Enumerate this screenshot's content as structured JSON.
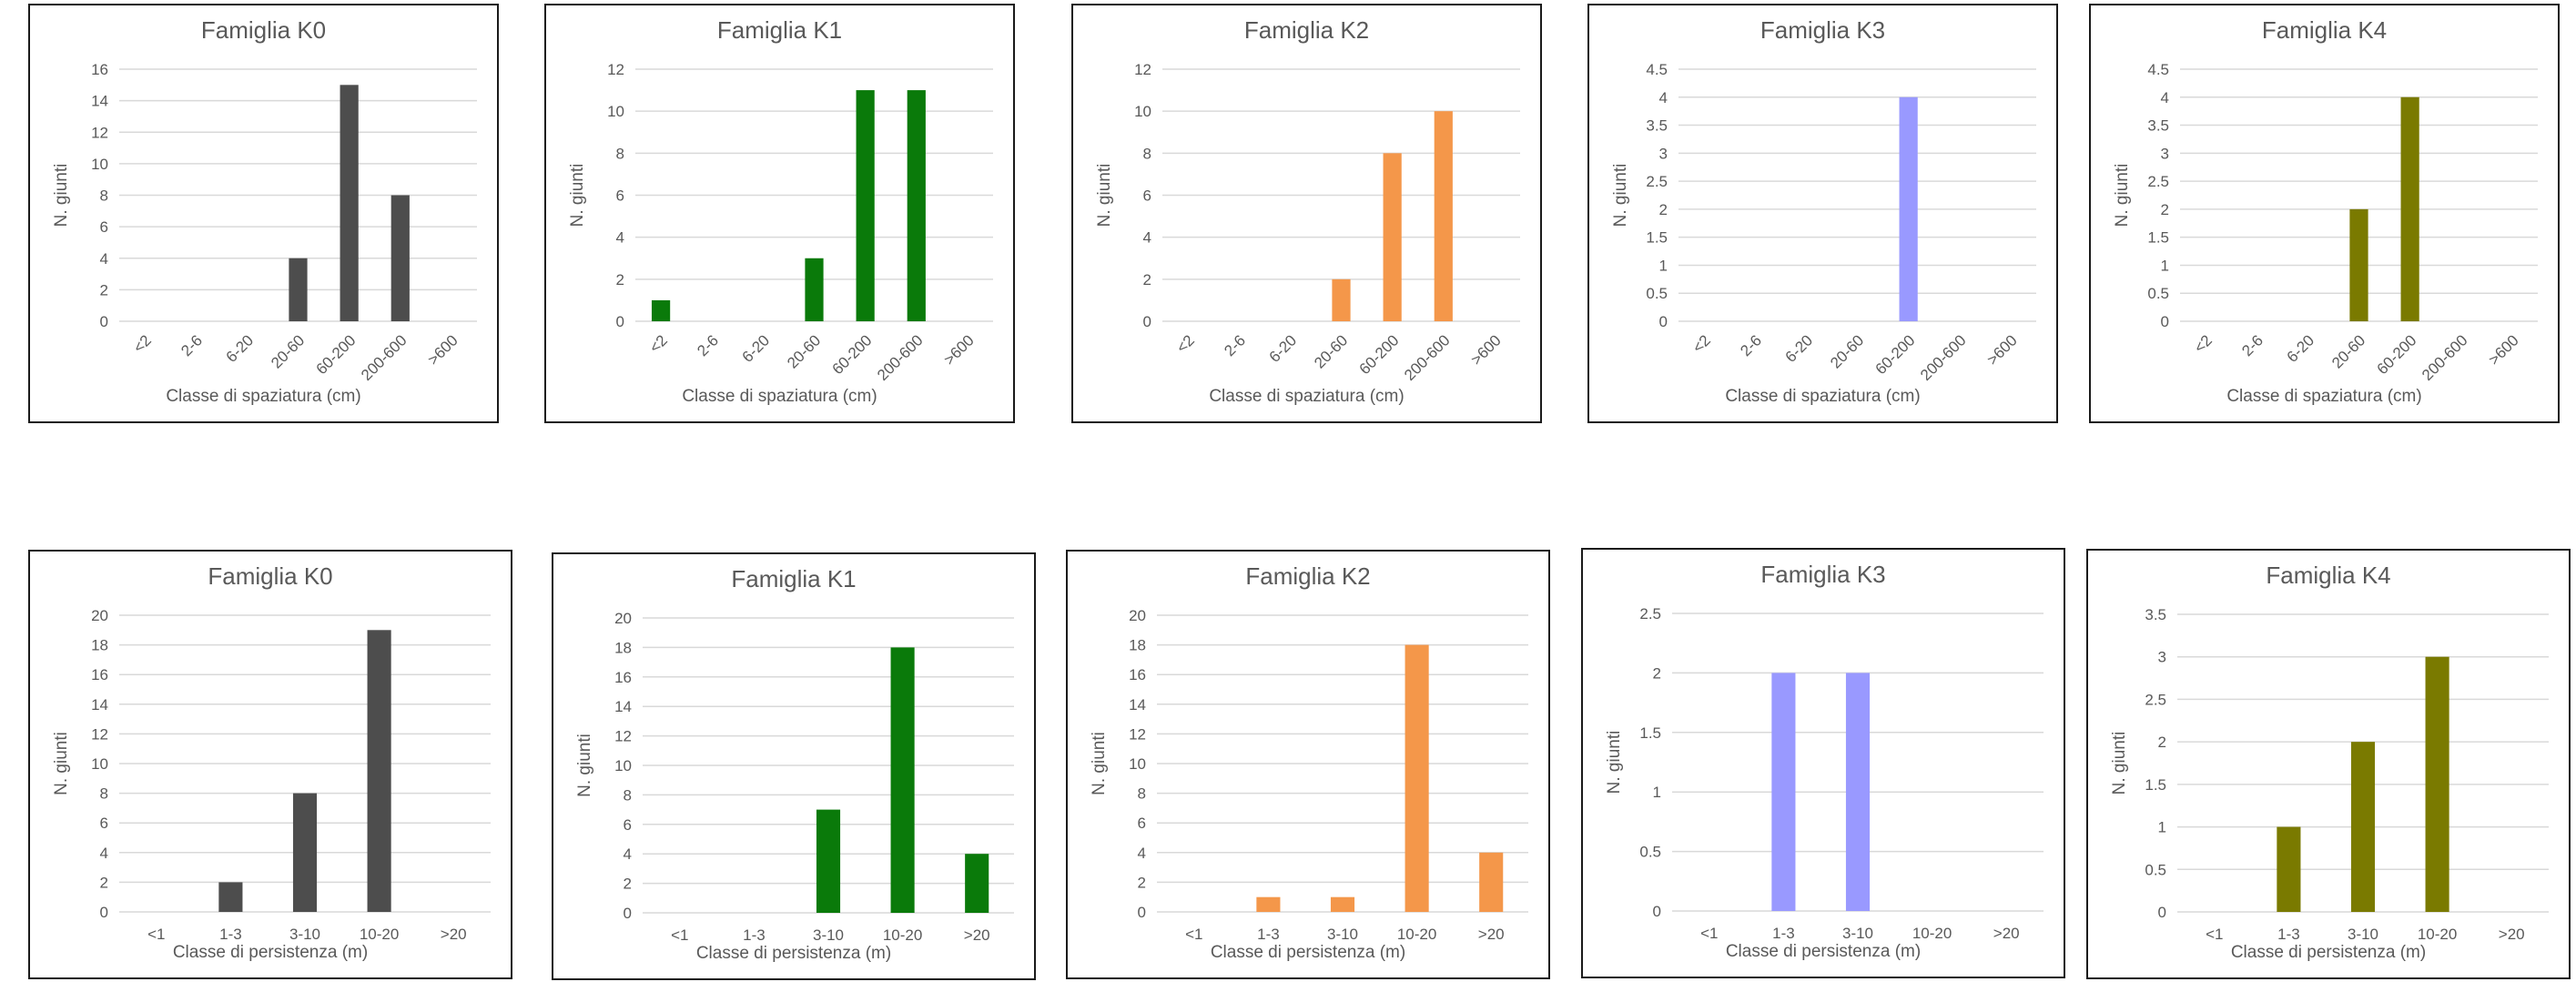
{
  "chart_data": [
    {
      "type": "bar",
      "title": "Famiglia K0",
      "xlabel": "Classe di spaziatura (cm)",
      "ylabel": "N. giunti",
      "categories": [
        "<2",
        "2-6",
        "6-20",
        "20-60",
        "60-200",
        "200-600",
        ">600"
      ],
      "values": [
        0,
        0,
        0,
        4,
        15,
        8,
        0
      ],
      "ylim": [
        0,
        16
      ],
      "ytick_step": 2,
      "color": "#4d4d4d",
      "rotate_x": true
    },
    {
      "type": "bar",
      "title": "Famiglia K1",
      "xlabel": "Classe di spaziatura (cm)",
      "ylabel": "N. giunti",
      "categories": [
        "<2",
        "2-6",
        "6-20",
        "20-60",
        "60-200",
        "200-600",
        ">600"
      ],
      "values": [
        1,
        0,
        0,
        3,
        11,
        11,
        0
      ],
      "ylim": [
        0,
        12
      ],
      "ytick_step": 2,
      "color": "#0a7a0a",
      "rotate_x": true
    },
    {
      "type": "bar",
      "title": "Famiglia K2",
      "xlabel": "Classe di spaziatura (cm)",
      "ylabel": "N. giunti",
      "categories": [
        "<2",
        "2-6",
        "6-20",
        "20-60",
        "60-200",
        "200-600",
        ">600"
      ],
      "values": [
        0,
        0,
        0,
        2,
        8,
        10,
        0
      ],
      "ylim": [
        0,
        12
      ],
      "ytick_step": 2,
      "color": "#f4974a",
      "rotate_x": true
    },
    {
      "type": "bar",
      "title": "Famiglia K3",
      "xlabel": "Classe di spaziatura (cm)",
      "ylabel": "N. giunti",
      "categories": [
        "<2",
        "2-6",
        "6-20",
        "20-60",
        "60-200",
        "200-600",
        ">600"
      ],
      "values": [
        0,
        0,
        0,
        0,
        4,
        0,
        0
      ],
      "ylim": [
        0,
        4.5
      ],
      "ytick_step": 0.5,
      "color": "#9999ff",
      "rotate_x": true
    },
    {
      "type": "bar",
      "title": "Famiglia K4",
      "xlabel": "Classe di spaziatura (cm)",
      "ylabel": "N. giunti",
      "categories": [
        "<2",
        "2-6",
        "6-20",
        "20-60",
        "60-200",
        "200-600",
        ">600"
      ],
      "values": [
        0,
        0,
        0,
        2,
        4,
        0,
        0
      ],
      "ylim": [
        0,
        4.5
      ],
      "ytick_step": 0.5,
      "color": "#7a7a00",
      "rotate_x": true
    },
    {
      "type": "bar",
      "title": "Famiglia K0",
      "xlabel": "Classe di persistenza (m)",
      "ylabel": "N. giunti",
      "categories": [
        "<1",
        "1-3",
        "3-10",
        "10-20",
        ">20"
      ],
      "values": [
        0,
        2,
        8,
        19,
        0
      ],
      "ylim": [
        0,
        20
      ],
      "ytick_step": 2,
      "color": "#4d4d4d",
      "rotate_x": false
    },
    {
      "type": "bar",
      "title": "Famiglia K1",
      "xlabel": "Classe di persistenza (m)",
      "ylabel": "N. giunti",
      "categories": [
        "<1",
        "1-3",
        "3-10",
        "10-20",
        ">20"
      ],
      "values": [
        0,
        0,
        7,
        18,
        4
      ],
      "ylim": [
        0,
        20
      ],
      "ytick_step": 2,
      "color": "#0a7a0a",
      "rotate_x": false
    },
    {
      "type": "bar",
      "title": "Famiglia K2",
      "xlabel": "Classe di persistenza (m)",
      "ylabel": "N. giunti",
      "categories": [
        "<1",
        "1-3",
        "3-10",
        "10-20",
        ">20"
      ],
      "values": [
        0,
        1,
        1,
        18,
        4
      ],
      "ylim": [
        0,
        20
      ],
      "ytick_step": 2,
      "color": "#f4974a",
      "rotate_x": false
    },
    {
      "type": "bar",
      "title": "Famiglia K3",
      "xlabel": "Classe di persistenza (m)",
      "ylabel": "N. giunti",
      "categories": [
        "<1",
        "1-3",
        "3-10",
        "10-20",
        ">20"
      ],
      "values": [
        0,
        2,
        2,
        0,
        0
      ],
      "ylim": [
        0,
        2.5
      ],
      "ytick_step": 0.5,
      "color": "#9999ff",
      "rotate_x": false
    },
    {
      "type": "bar",
      "title": "Famiglia K4",
      "xlabel": "Classe di persistenza (m)",
      "ylabel": "N. giunti",
      "categories": [
        "<1",
        "1-3",
        "3-10",
        "10-20",
        ">20"
      ],
      "values": [
        0,
        1,
        2,
        3,
        0
      ],
      "ylim": [
        0,
        3.5
      ],
      "ytick_step": 0.5,
      "color": "#7a7a00",
      "rotate_x": false
    }
  ]
}
